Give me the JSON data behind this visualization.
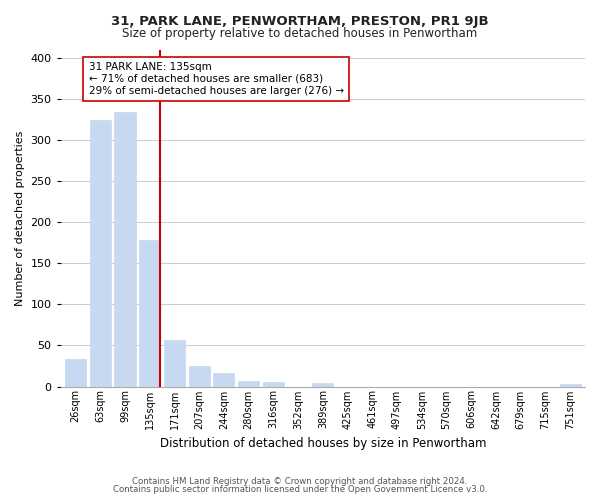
{
  "title": "31, PARK LANE, PENWORTHAM, PRESTON, PR1 9JB",
  "subtitle": "Size of property relative to detached houses in Penwortham",
  "xlabel": "Distribution of detached houses by size in Penwortham",
  "ylabel": "Number of detached properties",
  "bar_labels": [
    "26sqm",
    "63sqm",
    "99sqm",
    "135sqm",
    "171sqm",
    "207sqm",
    "244sqm",
    "280sqm",
    "316sqm",
    "352sqm",
    "389sqm",
    "425sqm",
    "461sqm",
    "497sqm",
    "534sqm",
    "570sqm",
    "606sqm",
    "642sqm",
    "679sqm",
    "715sqm",
    "751sqm"
  ],
  "bar_values": [
    33,
    325,
    335,
    178,
    57,
    25,
    17,
    7,
    5,
    0,
    4,
    0,
    0,
    0,
    0,
    0,
    0,
    0,
    0,
    0,
    3
  ],
  "bar_color": "#c6d9f0",
  "highlight_index": 3,
  "highlight_line_color": "#cc0000",
  "annotation_line1": "31 PARK LANE: 135sqm",
  "annotation_line2": "← 71% of detached houses are smaller (683)",
  "annotation_line3": "29% of semi-detached houses are larger (276) →",
  "annotation_box_color": "#ffffff",
  "annotation_box_edge_color": "#cc0000",
  "ylim": [
    0,
    410
  ],
  "yticks": [
    0,
    50,
    100,
    150,
    200,
    250,
    300,
    350,
    400
  ],
  "footer1": "Contains HM Land Registry data © Crown copyright and database right 2024.",
  "footer2": "Contains public sector information licensed under the Open Government Licence v3.0.",
  "background_color": "#ffffff",
  "grid_color": "#cccccc"
}
